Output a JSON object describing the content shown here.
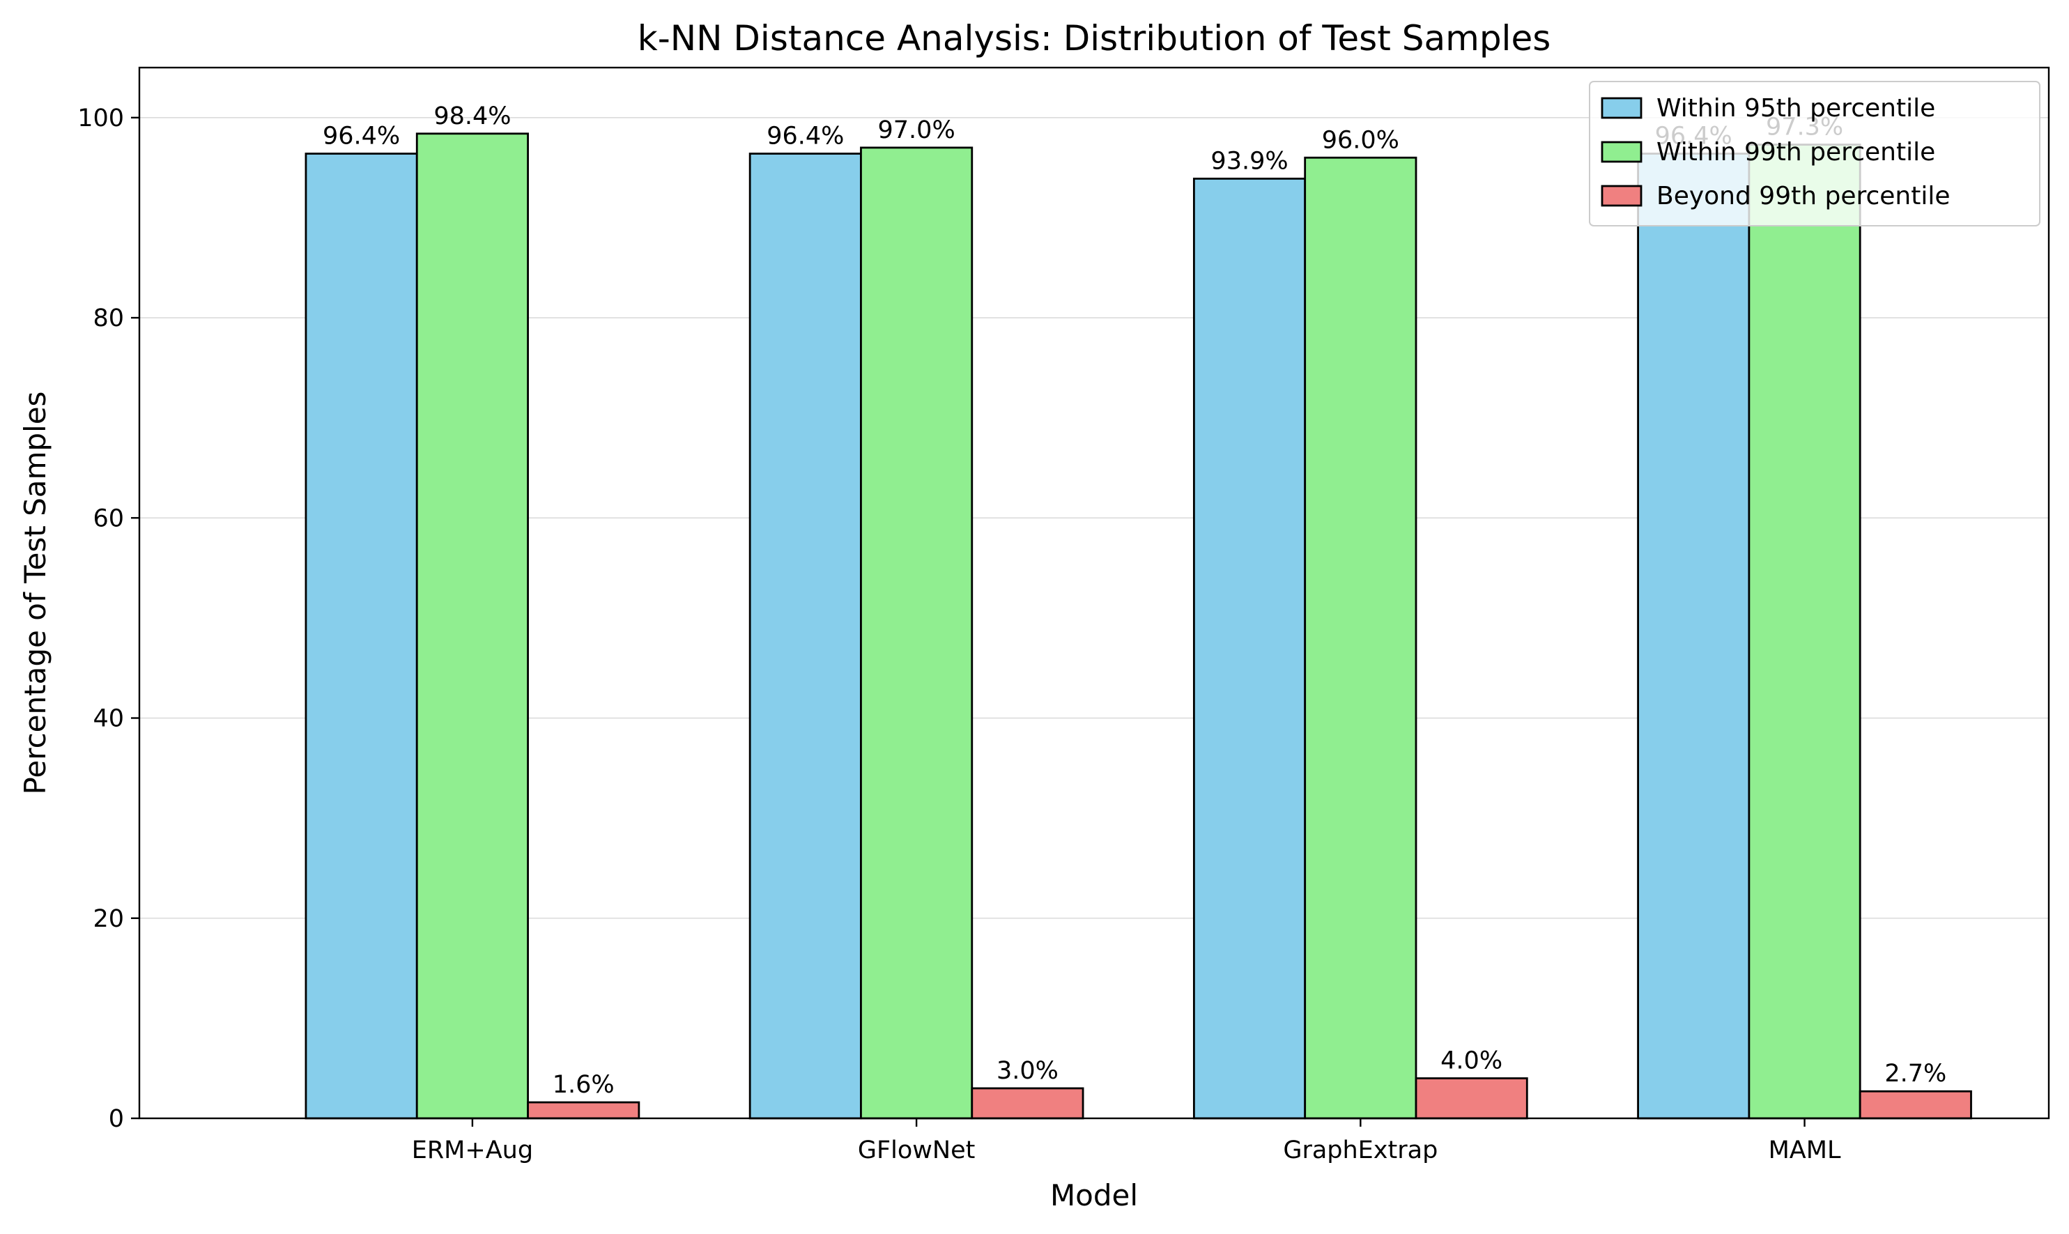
{
  "chart_data": {
    "type": "bar",
    "title": "k-NN Distance Analysis: Distribution of Test Samples",
    "xlabel": "Model",
    "ylabel": "Percentage of Test Samples",
    "ylim": [
      0,
      105
    ],
    "yticks": [
      0,
      20,
      40,
      60,
      80,
      100
    ],
    "grid": "y-only",
    "legend_position": "top-right",
    "categories": [
      "ERM+Aug",
      "GFlowNet",
      "GraphExtrap",
      "MAML"
    ],
    "series": [
      {
        "name": "Within 95th percentile",
        "color": "#87ceeb",
        "values": [
          96.4,
          96.4,
          93.9,
          96.4
        ],
        "labels": [
          "96.4%",
          "96.4%",
          "93.9%",
          "96.4%"
        ]
      },
      {
        "name": "Within 99th percentile",
        "color": "#90ee90",
        "values": [
          98.4,
          97.0,
          96.0,
          97.3
        ],
        "labels": [
          "98.4%",
          "97.0%",
          "96.0%",
          "97.3%"
        ]
      },
      {
        "name": "Beyond 99th percentile",
        "color": "#f08080",
        "values": [
          1.6,
          3.0,
          4.0,
          2.7
        ],
        "labels": [
          "1.6%",
          "3.0%",
          "4.0%",
          "2.7%"
        ]
      }
    ]
  }
}
